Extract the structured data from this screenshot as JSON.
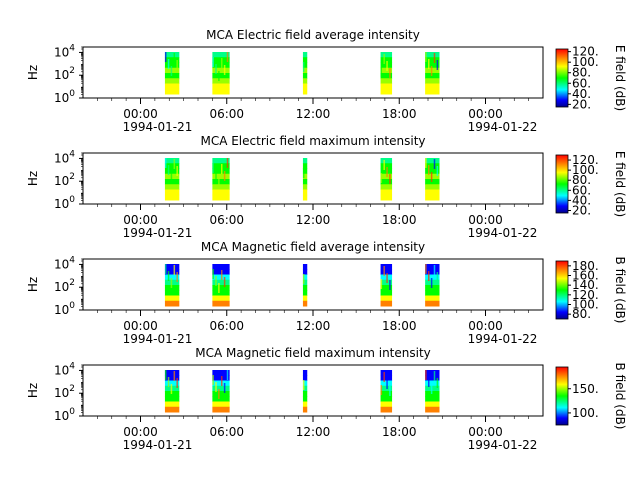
{
  "chart_data": [
    {
      "type": "heatmap",
      "title": "MCA  Electric field average intensity",
      "ylabel": "Hz",
      "colorbar_label": "E field (dB)",
      "yscale": "log",
      "ylim": [
        1,
        30000
      ],
      "yticks": [
        {
          "exp": "0"
        },
        {
          "exp": "2"
        },
        {
          "exp": "4"
        }
      ],
      "xlim_hours": [
        -4,
        28
      ],
      "xticks": [
        "00:00",
        "06:00",
        "12:00",
        "18:00",
        "00:00"
      ],
      "xdates": [
        "1994-01-21",
        "1994-01-22"
      ],
      "cbar_range": [
        15,
        125
      ],
      "cbar_ticks": [
        "20.",
        "40.",
        "60.",
        "80.",
        "100.",
        "120."
      ],
      "cbar_tick_values": [
        20,
        40,
        60,
        80,
        100,
        120
      ]
    },
    {
      "type": "heatmap",
      "title": "MCA  Electric field maximum intensity",
      "ylabel": "Hz",
      "colorbar_label": "E field (dB)",
      "yscale": "log",
      "ylim": [
        1,
        30000
      ],
      "yticks": [
        {
          "exp": "0"
        },
        {
          "exp": "2"
        },
        {
          "exp": "4"
        }
      ],
      "xlim_hours": [
        -4,
        28
      ],
      "xticks": [
        "00:00",
        "06:00",
        "12:00",
        "18:00",
        "00:00"
      ],
      "xdates": [
        "1994-01-21",
        "1994-01-22"
      ],
      "cbar_range": [
        15,
        130
      ],
      "cbar_ticks": [
        "20.",
        "40.",
        "60.",
        "80.",
        "100.",
        "120."
      ],
      "cbar_tick_values": [
        20,
        40,
        60,
        80,
        100,
        120
      ]
    },
    {
      "type": "heatmap",
      "title": "MCA  Magnetic field average intensity",
      "ylabel": "Hz",
      "colorbar_label": "B field (dB)",
      "yscale": "log",
      "ylim": [
        1,
        30000
      ],
      "yticks": [
        {
          "exp": "0"
        },
        {
          "exp": "2"
        },
        {
          "exp": "4"
        }
      ],
      "xlim_hours": [
        -4,
        28
      ],
      "xticks": [
        "00:00",
        "06:00",
        "12:00",
        "18:00",
        "00:00"
      ],
      "xdates": [
        "1994-01-21",
        "1994-01-22"
      ],
      "cbar_range": [
        70,
        190
      ],
      "cbar_ticks": [
        "80.",
        "100.",
        "120.",
        "140.",
        "160.",
        "180."
      ],
      "cbar_tick_values": [
        80,
        100,
        120,
        140,
        160,
        180
      ]
    },
    {
      "type": "heatmap",
      "title": "MCA  Magnetic field maximum intensity",
      "ylabel": "Hz",
      "colorbar_label": "B field (dB)",
      "yscale": "log",
      "ylim": [
        1,
        30000
      ],
      "yticks": [
        {
          "exp": "0"
        },
        {
          "exp": "2"
        },
        {
          "exp": "4"
        }
      ],
      "xlim_hours": [
        -4,
        28
      ],
      "xticks": [
        "00:00",
        "06:00",
        "12:00",
        "18:00",
        "00:00"
      ],
      "xdates": [
        "1994-01-21",
        "1994-01-22"
      ],
      "cbar_range": [
        75,
        195
      ],
      "cbar_ticks": [
        "100.",
        "150."
      ],
      "cbar_tick_values": [
        100,
        150
      ]
    }
  ],
  "data_intervals_hours": [
    [
      1.7,
      2.7
    ],
    [
      5.0,
      6.2
    ],
    [
      11.3,
      11.6
    ],
    [
      16.7,
      17.5
    ],
    [
      19.8,
      20.8
    ]
  ],
  "colormap": [
    "#00008b",
    "#0000ff",
    "#00ffff",
    "#00ff00",
    "#ffff00",
    "#ff8000",
    "#ff0000"
  ]
}
